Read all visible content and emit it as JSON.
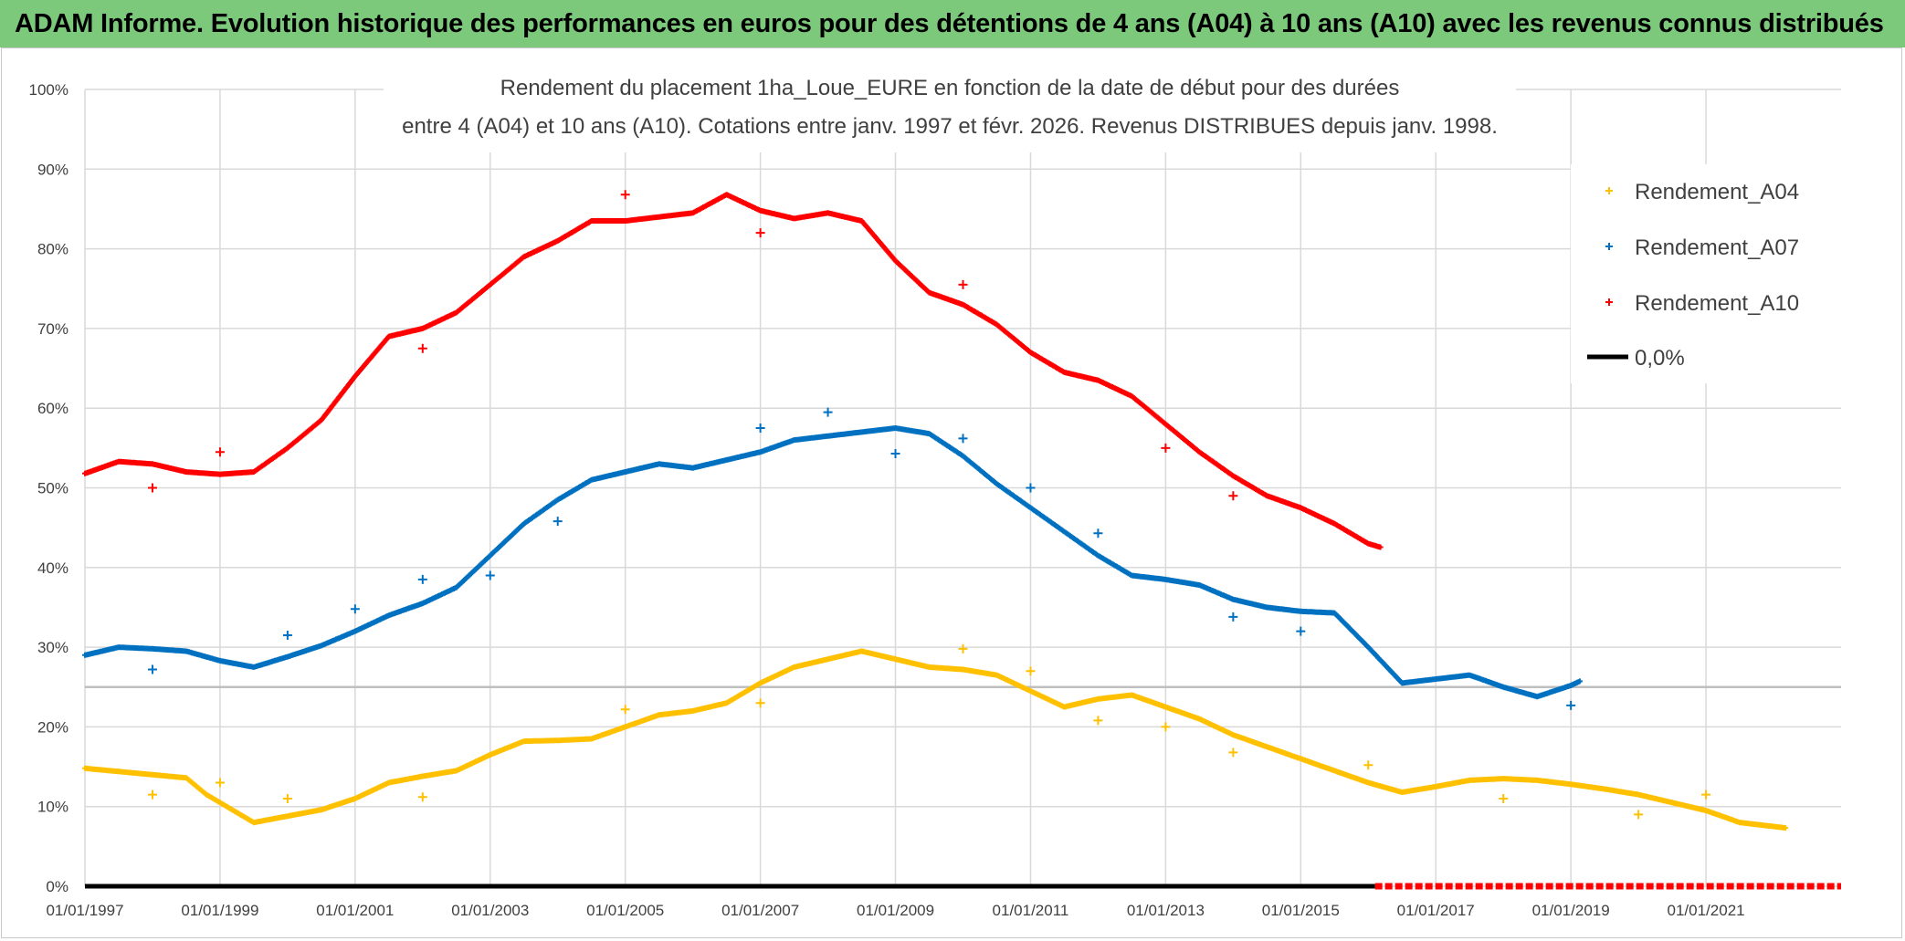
{
  "banner": {
    "text": "ADAM Informe. Evolution historique des performances en euros pour des détentions de 4 ans (A04) à 10 ans (A10) avec les revenus connus distribués"
  },
  "chart_data": {
    "type": "scatter",
    "title_line1": "Rendement du placement 1ha_Loue_EURE en fonction de la date de début pour des durées",
    "title_line2": "entre 4 (A04) et 10 ans (A10). Cotations entre janv. 1997 et févr. 2026. Revenus DISTRIBUES depuis janv. 1998.",
    "x_range": [
      1997.0,
      2023.0
    ],
    "ylim": [
      0,
      100
    ],
    "y_ticks": [
      "0%",
      "10%",
      "20%",
      "30%",
      "40%",
      "50%",
      "60%",
      "70%",
      "80%",
      "90%",
      "100%"
    ],
    "x_ticks": [
      {
        "label": "01/01/1997",
        "value": 1997
      },
      {
        "label": "01/01/1999",
        "value": 1999
      },
      {
        "label": "01/01/2001",
        "value": 2001
      },
      {
        "label": "01/01/2003",
        "value": 2003
      },
      {
        "label": "01/01/2005",
        "value": 2005
      },
      {
        "label": "01/01/2007",
        "value": 2007
      },
      {
        "label": "01/01/2009",
        "value": 2009
      },
      {
        "label": "01/01/2011",
        "value": 2011
      },
      {
        "label": "01/01/2013",
        "value": 2013
      },
      {
        "label": "01/01/2015",
        "value": 2015
      },
      {
        "label": "01/01/2017",
        "value": 2017
      },
      {
        "label": "01/01/2019",
        "value": 2019
      },
      {
        "label": "01/01/2021",
        "value": 2021
      }
    ],
    "reference_line_y": 25,
    "series": [
      {
        "name": "Rendement_A04",
        "color": "#ffc000",
        "points": [
          [
            1997.0,
            14.8
          ],
          [
            1997.5,
            14.4
          ],
          [
            1998.0,
            14.0
          ],
          [
            1998.5,
            13.6
          ],
          [
            1998.8,
            11.5
          ],
          [
            1999.2,
            9.5
          ],
          [
            1999.5,
            8.0
          ],
          [
            2000.0,
            8.8
          ],
          [
            2000.5,
            9.6
          ],
          [
            2001.0,
            11.0
          ],
          [
            2001.5,
            13.0
          ],
          [
            2002.0,
            13.8
          ],
          [
            2002.5,
            14.5
          ],
          [
            2003.0,
            16.5
          ],
          [
            2003.5,
            18.2
          ],
          [
            2004.0,
            18.3
          ],
          [
            2004.5,
            18.5
          ],
          [
            2005.0,
            20.0
          ],
          [
            2005.5,
            21.5
          ],
          [
            2006.0,
            22.0
          ],
          [
            2006.5,
            23.0
          ],
          [
            2007.0,
            25.5
          ],
          [
            2007.5,
            27.5
          ],
          [
            2008.0,
            28.5
          ],
          [
            2008.5,
            29.5
          ],
          [
            2009.0,
            28.5
          ],
          [
            2009.5,
            27.5
          ],
          [
            2010.0,
            27.2
          ],
          [
            2010.5,
            26.5
          ],
          [
            2011.0,
            24.5
          ],
          [
            2011.5,
            22.5
          ],
          [
            2012.0,
            23.5
          ],
          [
            2012.5,
            24.0
          ],
          [
            2013.0,
            22.5
          ],
          [
            2013.5,
            21.0
          ],
          [
            2014.0,
            19.0
          ],
          [
            2014.5,
            17.5
          ],
          [
            2015.0,
            16.0
          ],
          [
            2015.5,
            14.5
          ],
          [
            2016.0,
            13.0
          ],
          [
            2016.5,
            11.8
          ],
          [
            2017.0,
            12.5
          ],
          [
            2017.5,
            13.3
          ],
          [
            2018.0,
            13.5
          ],
          [
            2018.5,
            13.3
          ],
          [
            2019.0,
            12.8
          ],
          [
            2019.5,
            12.2
          ],
          [
            2020.0,
            11.5
          ],
          [
            2020.5,
            10.5
          ],
          [
            2021.0,
            9.5
          ],
          [
            2021.5,
            8.0
          ],
          [
            2022.0,
            7.5
          ],
          [
            2022.2,
            7.3
          ]
        ],
        "outliers": [
          [
            1998.0,
            11.5
          ],
          [
            1999.0,
            13.0
          ],
          [
            2000.0,
            11.0
          ],
          [
            2002.0,
            11.2
          ],
          [
            2005.0,
            22.2
          ],
          [
            2007.0,
            23.0
          ],
          [
            2010.0,
            29.8
          ],
          [
            2011.0,
            27.0
          ],
          [
            2012.0,
            20.8
          ],
          [
            2013.0,
            20.0
          ],
          [
            2014.0,
            16.8
          ],
          [
            2016.0,
            15.2
          ],
          [
            2018.0,
            11.0
          ],
          [
            2020.0,
            9.0
          ],
          [
            2021.0,
            11.5
          ]
        ]
      },
      {
        "name": "Rendement_A07",
        "color": "#0070c0",
        "points": [
          [
            1997.0,
            29.0
          ],
          [
            1997.5,
            30.0
          ],
          [
            1998.0,
            29.8
          ],
          [
            1998.5,
            29.5
          ],
          [
            1999.0,
            28.3
          ],
          [
            1999.5,
            27.5
          ],
          [
            2000.0,
            28.8
          ],
          [
            2000.5,
            30.2
          ],
          [
            2001.0,
            32.0
          ],
          [
            2001.5,
            34.0
          ],
          [
            2002.0,
            35.5
          ],
          [
            2002.5,
            37.5
          ],
          [
            2003.0,
            41.5
          ],
          [
            2003.5,
            45.5
          ],
          [
            2004.0,
            48.5
          ],
          [
            2004.5,
            51.0
          ],
          [
            2005.0,
            52.0
          ],
          [
            2005.5,
            53.0
          ],
          [
            2006.0,
            52.5
          ],
          [
            2006.5,
            53.5
          ],
          [
            2007.0,
            54.5
          ],
          [
            2007.5,
            56.0
          ],
          [
            2008.0,
            56.5
          ],
          [
            2008.5,
            57.0
          ],
          [
            2009.0,
            57.5
          ],
          [
            2009.5,
            56.8
          ],
          [
            2010.0,
            54.0
          ],
          [
            2010.5,
            50.5
          ],
          [
            2011.0,
            47.5
          ],
          [
            2011.5,
            44.5
          ],
          [
            2012.0,
            41.5
          ],
          [
            2012.5,
            39.0
          ],
          [
            2013.0,
            38.5
          ],
          [
            2013.5,
            37.8
          ],
          [
            2014.0,
            36.0
          ],
          [
            2014.5,
            35.0
          ],
          [
            2015.0,
            34.5
          ],
          [
            2015.5,
            34.3
          ],
          [
            2016.0,
            30.0
          ],
          [
            2016.5,
            25.5
          ],
          [
            2017.0,
            26.0
          ],
          [
            2017.5,
            26.5
          ],
          [
            2018.0,
            25.0
          ],
          [
            2018.5,
            23.8
          ],
          [
            2019.0,
            25.2
          ],
          [
            2019.15,
            25.8
          ]
        ],
        "outliers": [
          [
            1998.0,
            27.2
          ],
          [
            2000.0,
            31.5
          ],
          [
            2001.0,
            34.8
          ],
          [
            2002.0,
            38.5
          ],
          [
            2003.0,
            39.0
          ],
          [
            2004.0,
            45.8
          ],
          [
            2007.0,
            57.5
          ],
          [
            2008.0,
            59.5
          ],
          [
            2009.0,
            54.3
          ],
          [
            2010.0,
            56.2
          ],
          [
            2011.0,
            50.0
          ],
          [
            2012.0,
            44.3
          ],
          [
            2014.0,
            33.8
          ],
          [
            2015.0,
            32.0
          ],
          [
            2019.0,
            22.7
          ]
        ]
      },
      {
        "name": "Rendement_A10",
        "color": "#ff0000",
        "points": [
          [
            1997.0,
            51.8
          ],
          [
            1997.5,
            53.3
          ],
          [
            1998.0,
            53.0
          ],
          [
            1998.5,
            52.0
          ],
          [
            1999.0,
            51.7
          ],
          [
            1999.5,
            52.0
          ],
          [
            2000.0,
            55.0
          ],
          [
            2000.5,
            58.5
          ],
          [
            2001.0,
            64.0
          ],
          [
            2001.5,
            69.0
          ],
          [
            2002.0,
            70.0
          ],
          [
            2002.5,
            72.0
          ],
          [
            2003.0,
            75.5
          ],
          [
            2003.5,
            79.0
          ],
          [
            2004.0,
            81.0
          ],
          [
            2004.5,
            83.5
          ],
          [
            2005.0,
            83.5
          ],
          [
            2005.5,
            84.0
          ],
          [
            2006.0,
            84.5
          ],
          [
            2006.5,
            86.8
          ],
          [
            2007.0,
            84.8
          ],
          [
            2007.5,
            83.8
          ],
          [
            2008.0,
            84.5
          ],
          [
            2008.5,
            83.5
          ],
          [
            2009.0,
            78.5
          ],
          [
            2009.5,
            74.5
          ],
          [
            2010.0,
            73.0
          ],
          [
            2010.5,
            70.5
          ],
          [
            2011.0,
            67.0
          ],
          [
            2011.5,
            64.5
          ],
          [
            2012.0,
            63.5
          ],
          [
            2012.5,
            61.5
          ],
          [
            2013.0,
            58.0
          ],
          [
            2013.5,
            54.5
          ],
          [
            2014.0,
            51.5
          ],
          [
            2014.5,
            49.0
          ],
          [
            2015.0,
            47.5
          ],
          [
            2015.5,
            45.5
          ],
          [
            2016.0,
            43.0
          ],
          [
            2016.2,
            42.5
          ]
        ],
        "outliers": [
          [
            1998.0,
            50.0
          ],
          [
            1999.0,
            54.5
          ],
          [
            2002.0,
            67.5
          ],
          [
            2005.0,
            86.8
          ],
          [
            2007.0,
            82.0
          ],
          [
            2010.0,
            75.5
          ],
          [
            2013.0,
            55.0
          ],
          [
            2014.0,
            49.0
          ]
        ]
      },
      {
        "name": "0,0%",
        "color": "#000000",
        "points": [
          [
            1997.0,
            0
          ],
          [
            2016.1,
            0
          ]
        ]
      }
    ],
    "zero_red_range": [
      2016.1,
      2023.0
    ]
  }
}
